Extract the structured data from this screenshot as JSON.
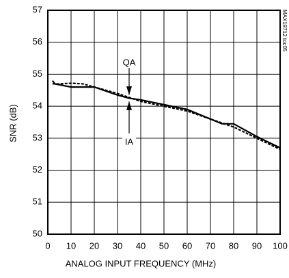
{
  "chart_data": {
    "type": "line",
    "xlabel": "ANALOG INPUT FREQUENCY (MHz)",
    "ylabel": "SNR (dB)",
    "note": "MAX19712 toc05",
    "xlim": [
      0,
      100
    ],
    "xticks": [
      0,
      10,
      20,
      30,
      40,
      50,
      60,
      70,
      80,
      90,
      100
    ],
    "ylim": [
      50,
      57
    ],
    "yticks": [
      50,
      51,
      52,
      53,
      54,
      55,
      56,
      57
    ],
    "grid": true,
    "series": [
      {
        "name": "QA",
        "color": "#000000",
        "line_style": "solid",
        "x": [
          2,
          3,
          10,
          20,
          30,
          35,
          40,
          50,
          60,
          70,
          75,
          80,
          90,
          100
        ],
        "values": [
          54.8,
          54.7,
          54.6,
          54.6,
          54.35,
          54.25,
          54.2,
          54.05,
          53.9,
          53.6,
          53.45,
          53.45,
          53.05,
          52.7
        ]
      },
      {
        "name": "IA",
        "color": "#000000",
        "line_style": "dashed",
        "x": [
          2,
          5,
          10,
          15,
          20,
          30,
          40,
          50,
          60,
          70,
          80,
          90,
          100
        ],
        "values": [
          54.7,
          54.7,
          54.72,
          54.7,
          54.6,
          54.4,
          54.15,
          54.0,
          53.85,
          53.6,
          53.35,
          53.0,
          52.65
        ]
      }
    ]
  }
}
